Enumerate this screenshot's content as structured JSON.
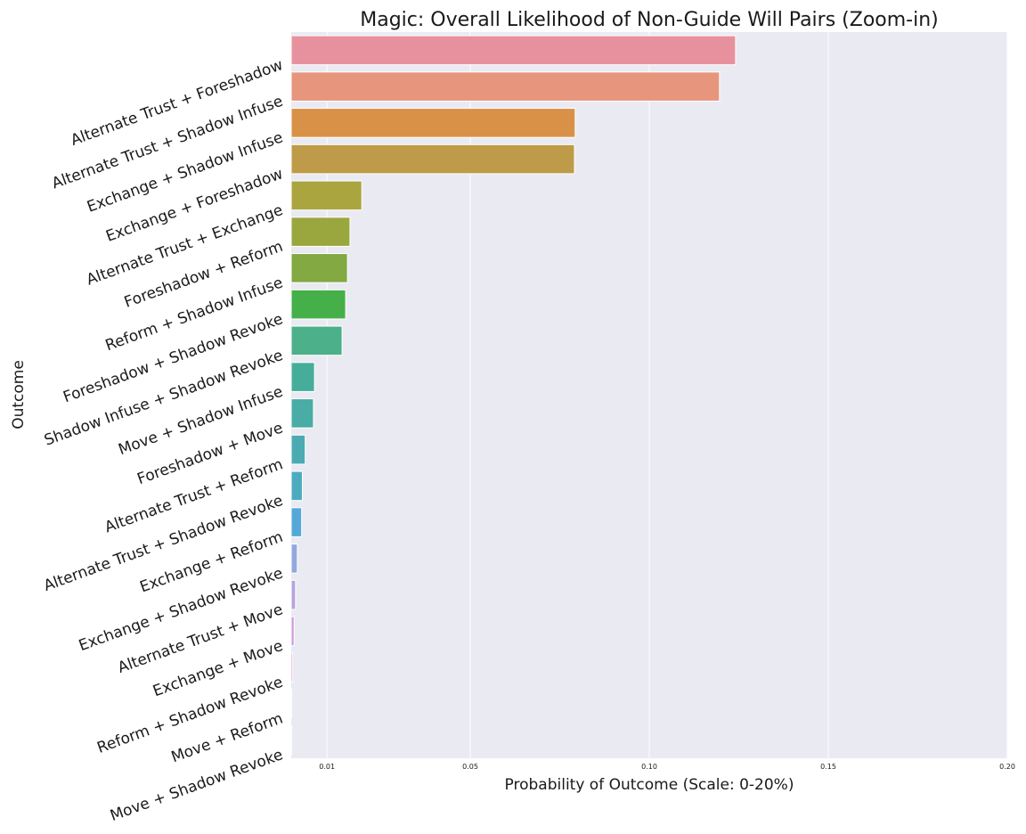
{
  "chart_data": {
    "type": "bar",
    "orientation": "horizontal",
    "title": "Magic: Overall Likelihood of Non-Guide Will Pairs (Zoom-in)",
    "xlabel": "Probability of Outcome (Scale: 0-20%)",
    "ylabel": "Outcome",
    "xlim": [
      0.0,
      0.2
    ],
    "xticks": [
      0.01,
      0.05,
      0.1,
      0.15,
      0.2
    ],
    "xtick_labels": [
      "0.01",
      "0.05",
      "0.10",
      "0.15",
      "0.20"
    ],
    "grid": true,
    "categories": [
      "Alternate Trust + Foreshadow",
      "Alternate Trust + Shadow Infuse",
      "Exchange + Shadow Infuse",
      "Exchange + Foreshadow",
      "Alternate Trust + Exchange",
      "Foreshadow + Reform",
      "Reform + Shadow Infuse",
      "Foreshadow + Shadow Revoke",
      "Shadow Infuse + Shadow Revoke",
      "Move + Shadow Infuse",
      "Foreshadow + Move",
      "Alternate Trust + Reform",
      "Alternate Trust + Shadow Revoke",
      "Exchange + Reform",
      "Exchange + Shadow Revoke",
      "Alternate Trust + Move",
      "Exchange + Move",
      "Reform + Shadow Revoke",
      "Move + Reform",
      "Move + Shadow Revoke"
    ],
    "values": [
      0.1241,
      0.1196,
      0.0793,
      0.0791,
      0.0197,
      0.0164,
      0.0157,
      0.0152,
      0.0142,
      0.0065,
      0.0062,
      0.0039,
      0.0031,
      0.0029,
      0.0017,
      0.0012,
      0.0008,
      0.0004,
      0.0001,
      0.0001
    ],
    "colors": [
      "#e8919e",
      "#e8957d",
      "#d99147",
      "#be9b48",
      "#aba540",
      "#9aa73f",
      "#82a942",
      "#45b049",
      "#4cb08a",
      "#47ad9b",
      "#49aca5",
      "#4cabb1",
      "#4dabc0",
      "#55a9d8",
      "#93a9de",
      "#b7a3df",
      "#cc9ae0",
      "#e08fcd",
      "#e58fb9",
      "#e68fa8"
    ],
    "background": "#eaeaf2",
    "grid_color": "#ffffff"
  }
}
